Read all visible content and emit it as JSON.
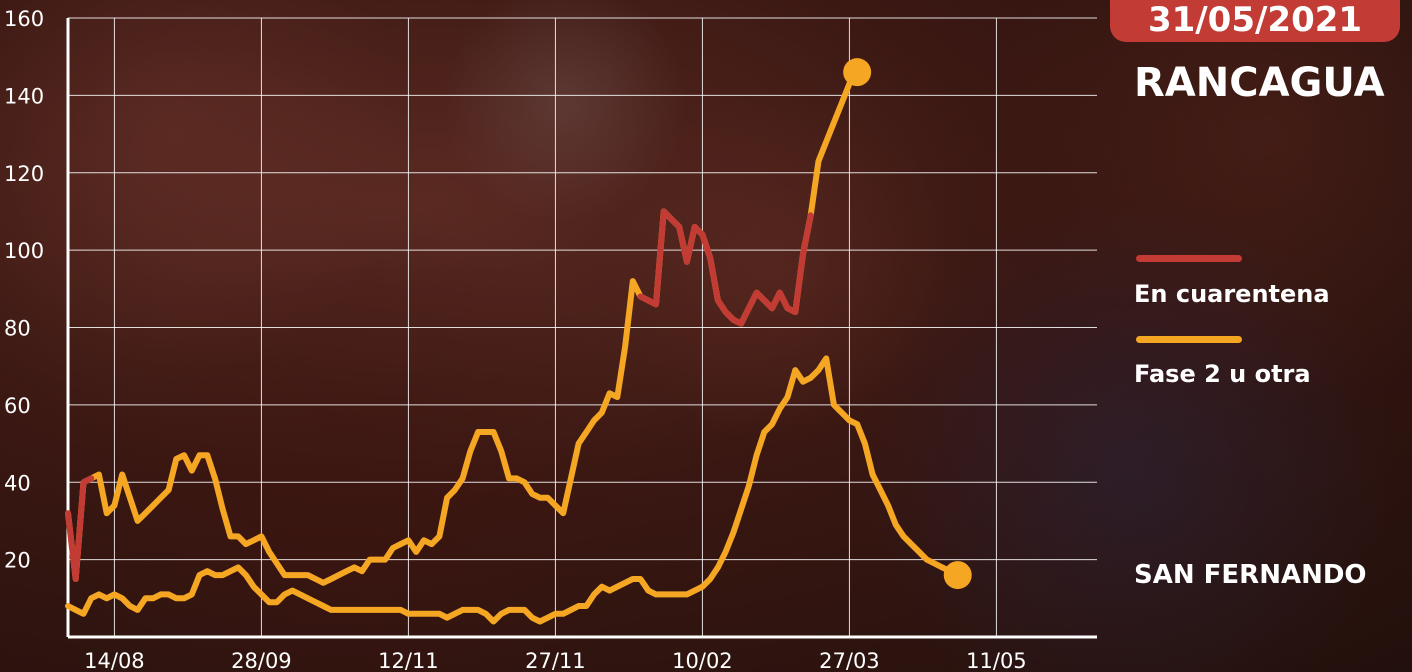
{
  "date_badge": "31/05/2021",
  "labels": {
    "city_top": "RANCAGUA",
    "city_bottom": "SAN FERNANDO"
  },
  "legend": [
    {
      "label": "En cuarentena",
      "color": "#c23b35"
    },
    {
      "label": "Fase 2 u otra",
      "color": "#f5a623"
    }
  ],
  "chart_data": {
    "type": "line",
    "ylim": [
      0,
      160
    ],
    "yticks": [
      20,
      40,
      60,
      80,
      100,
      120,
      140,
      160
    ],
    "x_tick_labels": [
      "14/08",
      "28/09",
      "12/11",
      "27/11",
      "10/02",
      "27/03",
      "11/05"
    ],
    "x_tick_index": [
      6,
      25,
      44,
      63,
      82,
      101,
      120
    ],
    "grid": true,
    "x_count": 134,
    "series": [
      {
        "name": "RANCAGUA",
        "values": [
          32,
          15,
          40,
          41,
          42,
          32,
          34,
          42,
          36,
          30,
          32,
          34,
          36,
          38,
          46,
          47,
          43,
          47,
          47,
          41,
          33,
          26,
          26,
          24,
          25,
          26,
          22,
          19,
          16,
          16,
          16,
          16,
          15,
          14,
          15,
          16,
          17,
          18,
          17,
          20,
          20,
          20,
          23,
          24,
          25,
          22,
          25,
          24,
          26,
          36,
          38,
          41,
          48,
          53,
          53,
          53,
          48,
          41,
          41,
          40,
          37,
          36,
          36,
          34,
          32,
          41,
          50,
          53,
          56,
          58,
          63,
          62,
          75,
          92,
          88,
          87,
          86,
          110,
          108,
          106,
          97,
          106,
          104,
          98,
          87,
          84,
          82,
          81,
          85,
          89,
          87,
          85,
          89,
          85,
          84,
          99,
          109,
          123,
          128,
          133,
          138,
          143,
          146
        ],
        "quarantine_ranges": [
          [
            0,
            3
          ],
          [
            74,
            96
          ]
        ]
      },
      {
        "name": "SAN FERNANDO",
        "values": [
          8,
          7,
          6,
          10,
          11,
          10,
          11,
          10,
          8,
          7,
          10,
          10,
          11,
          11,
          10,
          10,
          11,
          16,
          17,
          16,
          16,
          17,
          18,
          16,
          13,
          11,
          9,
          9,
          11,
          12,
          11,
          10,
          9,
          8,
          7,
          7,
          7,
          7,
          7,
          7,
          7,
          7,
          7,
          7,
          6,
          6,
          6,
          6,
          6,
          5,
          6,
          7,
          7,
          7,
          6,
          4,
          6,
          7,
          7,
          7,
          5,
          4,
          5,
          6,
          6,
          7,
          8,
          8,
          11,
          13,
          12,
          13,
          14,
          15,
          15,
          12,
          11,
          11,
          11,
          11,
          11,
          12,
          13,
          15,
          18,
          22,
          27,
          33,
          39,
          47,
          53,
          55,
          59,
          62,
          69,
          66,
          67,
          69,
          72,
          60,
          58,
          56,
          55,
          50,
          42,
          38,
          34,
          29,
          26,
          24,
          22,
          20,
          19,
          18,
          17,
          16
        ],
        "quarantine_ranges": []
      }
    ]
  }
}
